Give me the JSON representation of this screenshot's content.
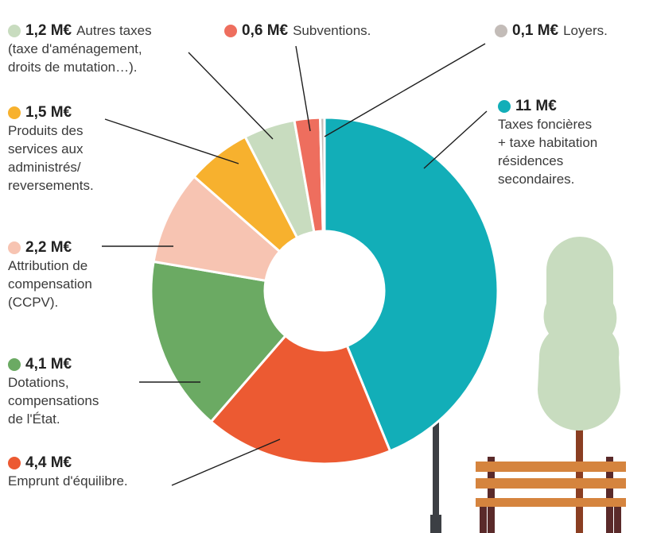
{
  "chart_data": {
    "type": "pie",
    "title": "",
    "unit": "M€",
    "slices": [
      {
        "value": 11,
        "label": "11 M€",
        "description": "Taxes foncières\n+ taxe habitation\nrésidences\nsecondaires.",
        "color": "#12AEB8"
      },
      {
        "value": 4.4,
        "label": "4,4 M€",
        "description": "Emprunt d'équilibre.",
        "color": "#EC5A32"
      },
      {
        "value": 4.1,
        "label": "4,1 M€",
        "description": "Dotations,\ncompensations\nde l'État.",
        "color": "#6BAA63"
      },
      {
        "value": 2.2,
        "label": "2,2 M€",
        "description": "Attribution de\ncompensation\n(CCPV).",
        "color": "#F7C4B2"
      },
      {
        "value": 1.5,
        "label": "1,5 M€",
        "description": "Produits des\nservices aux\nadministrés/\nreversements.",
        "color": "#F7B12E"
      },
      {
        "value": 1.2,
        "label": "1,2 M€",
        "description": "Autres taxes\n(taxe d'aménagement,\ndroits de mutation…).",
        "color": "#C8DCBF"
      },
      {
        "value": 0.6,
        "label": "0,6 M€",
        "description": "Subventions.",
        "color": "#EE6E5E"
      },
      {
        "value": 0.1,
        "label": "0,1 M€",
        "description": "Loyers.",
        "color": "#C3BCB8"
      }
    ]
  },
  "illustration": {
    "tree_foliage_color": "#C8DCBF",
    "tree_trunk_color": "#8A3E22",
    "bench_slat_color": "#D5843E",
    "bench_leg_color": "#5A2A2A",
    "lamp_post_color": "#3C3F44",
    "lamp_glass_color": "#FBE3C8"
  }
}
